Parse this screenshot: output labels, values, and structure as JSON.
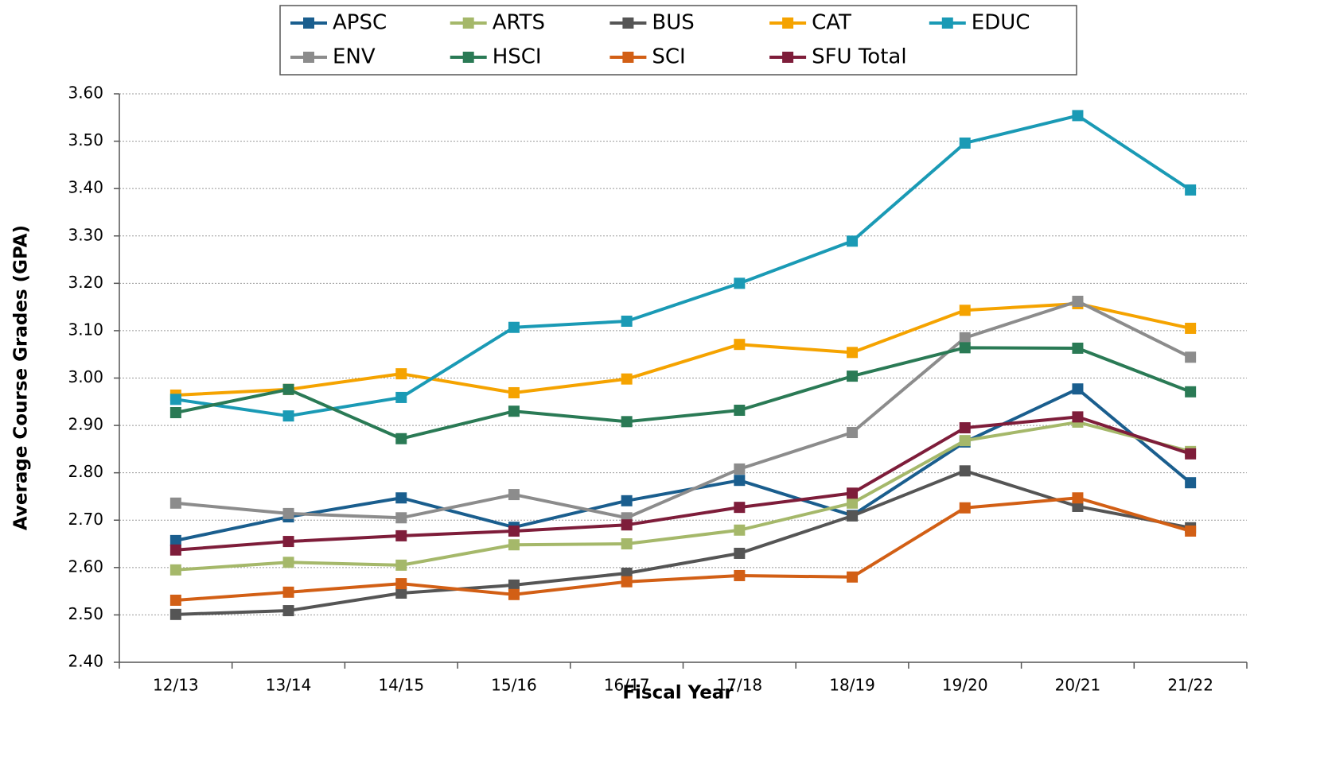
{
  "chart_data": {
    "type": "line",
    "x_label": "Fiscal Year",
    "y_label": "Average Course Grades (GPA)",
    "categories": [
      "12/13",
      "13/14",
      "14/15",
      "15/16",
      "16/17",
      "17/18",
      "18/19",
      "19/20",
      "20/21",
      "21/22"
    ],
    "ylim": [
      2.4,
      3.6
    ],
    "yticks": [
      {
        "value": 2.4,
        "label": "2.40"
      },
      {
        "value": 2.5,
        "label": "2.50"
      },
      {
        "value": 2.6,
        "label": "2.60"
      },
      {
        "value": 2.7,
        "label": "2.70"
      },
      {
        "value": 2.8,
        "label": "2.80"
      },
      {
        "value": 2.9,
        "label": "2.90"
      },
      {
        "value": 3.0,
        "label": "3.00"
      },
      {
        "value": 3.1,
        "label": "3.10"
      },
      {
        "value": 3.2,
        "label": "3.20"
      },
      {
        "value": 3.3,
        "label": "3.30"
      },
      {
        "value": 3.4,
        "label": "3.40"
      },
      {
        "value": 3.5,
        "label": "3.50"
      },
      {
        "value": 3.6,
        "label": "3.60"
      }
    ],
    "grid": true,
    "series": [
      {
        "name": "APSC",
        "color": "#1a5e8e",
        "values": [
          2.657,
          2.707,
          2.747,
          2.685,
          2.741,
          2.784,
          2.71,
          2.865,
          2.977,
          2.779
        ]
      },
      {
        "name": "ARTS",
        "color": "#a5b86a",
        "values": [
          2.595,
          2.611,
          2.605,
          2.648,
          2.65,
          2.679,
          2.736,
          2.868,
          2.907,
          2.845
        ]
      },
      {
        "name": "BUS",
        "color": "#555555",
        "values": [
          2.501,
          2.509,
          2.546,
          2.563,
          2.588,
          2.63,
          2.709,
          2.804,
          2.729,
          2.684
        ]
      },
      {
        "name": "CAT",
        "color": "#f5a300",
        "values": [
          2.964,
          2.976,
          3.009,
          2.969,
          2.998,
          3.071,
          3.054,
          3.143,
          3.157,
          3.105
        ]
      },
      {
        "name": "EDUC",
        "color": "#1a9ab5",
        "values": [
          2.955,
          2.92,
          2.959,
          3.107,
          3.12,
          3.2,
          3.289,
          3.496,
          3.554,
          3.397
        ]
      },
      {
        "name": "ENV",
        "color": "#8c8c8c",
        "values": [
          2.736,
          2.714,
          2.705,
          2.754,
          2.705,
          2.808,
          2.885,
          3.085,
          3.162,
          3.044
        ]
      },
      {
        "name": "HSCI",
        "color": "#2a7a55",
        "values": [
          2.927,
          2.976,
          2.872,
          2.93,
          2.908,
          2.932,
          3.004,
          3.064,
          3.063,
          2.971
        ]
      },
      {
        "name": "SCI",
        "color": "#d25f15",
        "values": [
          2.531,
          2.548,
          2.566,
          2.543,
          2.57,
          2.583,
          2.58,
          2.726,
          2.747,
          2.677
        ]
      },
      {
        "name": "SFU Total",
        "color": "#7e1d3a",
        "values": [
          2.637,
          2.655,
          2.667,
          2.677,
          2.69,
          2.727,
          2.757,
          2.895,
          2.918,
          2.84
        ]
      }
    ]
  }
}
